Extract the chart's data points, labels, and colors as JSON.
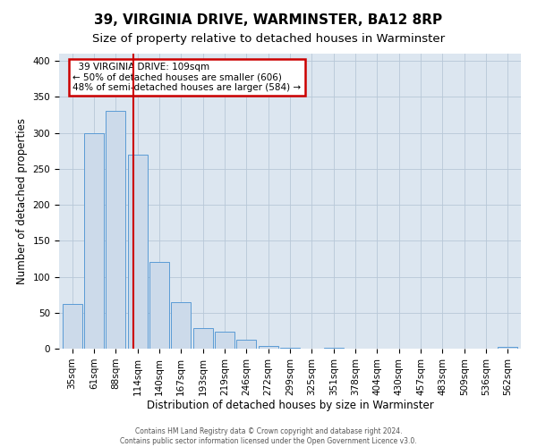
{
  "title": "39, VIRGINIA DRIVE, WARMINSTER, BA12 8RP",
  "subtitle": "Size of property relative to detached houses in Warminster",
  "xlabel": "Distribution of detached houses by size in Warminster",
  "ylabel": "Number of detached properties",
  "footer_line1": "Contains HM Land Registry data © Crown copyright and database right 2024.",
  "footer_line2": "Contains public sector information licensed under the Open Government Licence v3.0.",
  "bar_labels": [
    "35sqm",
    "61sqm",
    "88sqm",
    "114sqm",
    "140sqm",
    "167sqm",
    "193sqm",
    "219sqm",
    "246sqm",
    "272sqm",
    "299sqm",
    "325sqm",
    "351sqm",
    "378sqm",
    "404sqm",
    "430sqm",
    "457sqm",
    "483sqm",
    "509sqm",
    "536sqm",
    "562sqm"
  ],
  "bar_values": [
    62,
    300,
    330,
    270,
    120,
    65,
    29,
    24,
    13,
    4,
    1,
    0,
    1,
    0,
    0,
    0,
    0,
    0,
    0,
    0,
    2
  ],
  "bar_color": "#ccdaea",
  "bar_edge_color": "#5b9bd5",
  "annotation_title": "39 VIRGINIA DRIVE: 109sqm",
  "annotation_line1": "← 50% of detached houses are smaller (606)",
  "annotation_line2": "48% of semi-detached houses are larger (584) →",
  "annotation_box_edge": "#cc0000",
  "vline_color": "#cc0000",
  "ylim": [
    0,
    410
  ],
  "yticks": [
    0,
    50,
    100,
    150,
    200,
    250,
    300,
    350,
    400
  ],
  "plot_background": "#dce6f0",
  "title_fontsize": 11,
  "subtitle_fontsize": 9.5,
  "axis_label_fontsize": 8.5,
  "tick_fontsize": 7.5,
  "annotation_fontsize": 7.5
}
